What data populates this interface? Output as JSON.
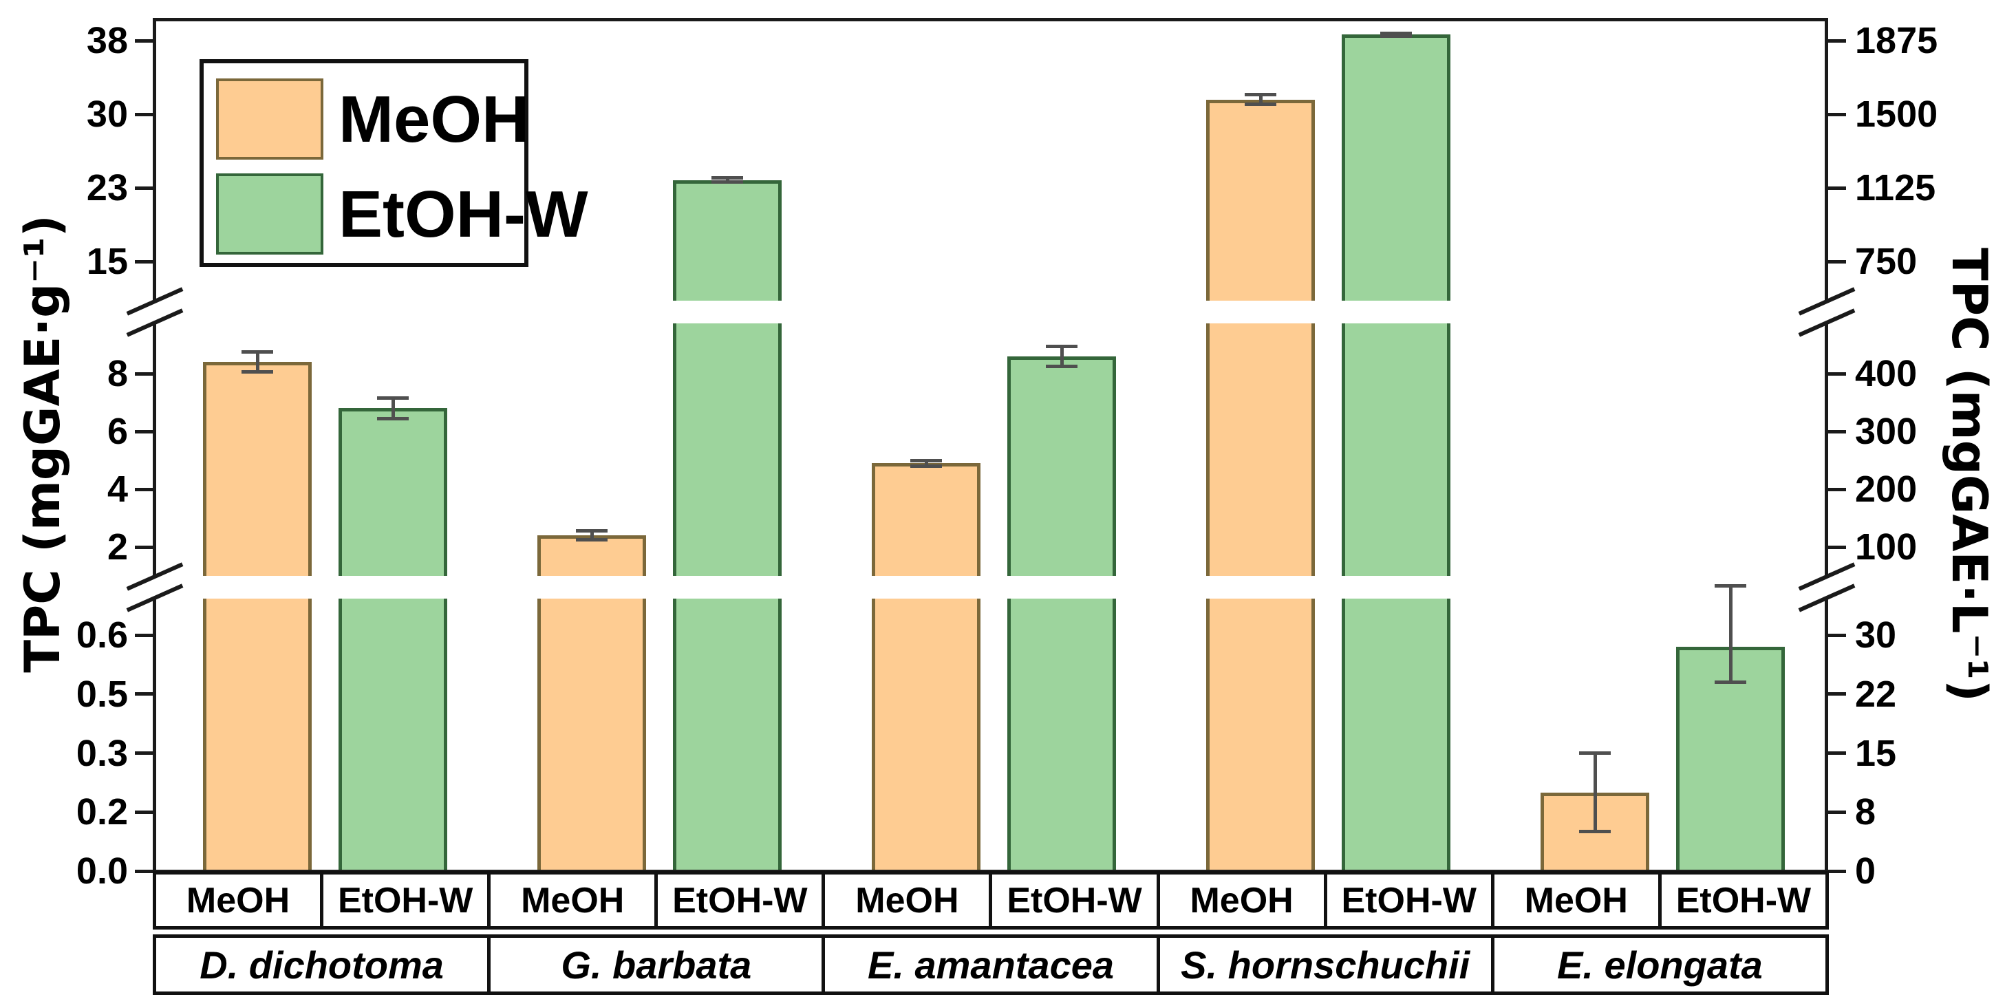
{
  "chart_data": {
    "type": "bar",
    "title": "",
    "categories": [
      "D. dichotoma",
      "G. barbata",
      "E. amantacea",
      "S. hornschuchii",
      "E. elongata"
    ],
    "series": [
      {
        "name": "MeOH",
        "fill": "#FECC92",
        "border": "#7B683A",
        "values": [
          8.4,
          2.4,
          4.9,
          31.5,
          0.2
        ],
        "errors": [
          0.35,
          0.15,
          0.1,
          0.5,
          0.1
        ]
      },
      {
        "name": "EtOH-W",
        "fill": "#9DD49D",
        "border": "#34663A",
        "values": [
          6.8,
          23.3,
          8.6,
          38.1,
          0.57
        ],
        "errors": [
          0.35,
          0.2,
          0.35,
          0.15,
          0.09
        ]
      }
    ],
    "left_axis": {
      "label": "TPC (mgGAE·g⁻¹)"
    },
    "right_axis": {
      "label": "TPC (mgGAE·L⁻¹)"
    },
    "ticks": [
      {
        "v": 0,
        "left": "0.0",
        "right": "0"
      },
      {
        "v": 0.15,
        "left": "0.2",
        "right": "8"
      },
      {
        "v": 0.3,
        "left": "0.3",
        "right": "15"
      },
      {
        "v": 0.45,
        "left": "0.5",
        "right": "22"
      },
      {
        "v": 0.6,
        "left": "0.6",
        "right": "30"
      },
      {
        "v": 2,
        "left": "2",
        "right": "100"
      },
      {
        "v": 4,
        "left": "4",
        "right": "200"
      },
      {
        "v": 6,
        "left": "6",
        "right": "300"
      },
      {
        "v": 8,
        "left": "8",
        "right": "400"
      },
      {
        "v": 15,
        "left": "15",
        "right": "750"
      },
      {
        "v": 22.5,
        "left": "23",
        "right": "1125"
      },
      {
        "v": 30,
        "left": "30",
        "right": "1500"
      },
      {
        "v": 37.5,
        "left": "38",
        "right": "1875"
      }
    ],
    "axis_breaks": {
      "count": 2,
      "left_segments": [
        [
          0,
          0.6
        ],
        [
          2,
          8
        ],
        [
          15,
          38
        ]
      ]
    },
    "legend": {
      "entries": [
        "MeOH",
        "EtOH-W"
      ],
      "position": "top-left"
    },
    "x_axis": {
      "solvent_row": [
        "MeOH",
        "EtOH-W"
      ],
      "species_row": [
        "D. dichotoma",
        "G. barbata",
        "E. amantacea",
        "S. hornschuchii",
        "E. elongata"
      ]
    },
    "grid": "off",
    "error_bar_color": "#4f4f4f",
    "frame_color": "#1a1a1a"
  }
}
